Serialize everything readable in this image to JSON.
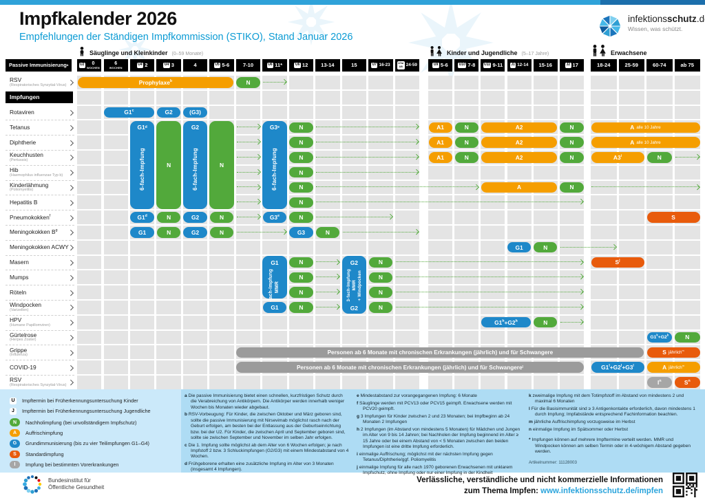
{
  "header": {
    "title": "Impfkalender 2026",
    "subtitle": "Empfehlungen der Ständigen Impfkommission (STIKO), Stand Januar 2026",
    "brand": {
      "pre": "infektions",
      "bold": "schutz",
      "post": ".de",
      "tagline": "Wissen, was schützt."
    }
  },
  "groups": [
    {
      "label": "Säuglinge und Kleinkinder",
      "sub": "(0–59 Monate)"
    },
    {
      "label": "Kinder und Jugendliche",
      "sub": "(5–17 Jahre)"
    },
    {
      "label": "Erwachsene",
      "sub": ""
    }
  ],
  "corner_label": "Passive Immunisierung^a",
  "columns": [
    [
      {
        "badge": "U2",
        "line1": "0",
        "line2": "WOCHEN"
      },
      {
        "line1": "6",
        "line2": "WOCHEN"
      },
      {
        "badge": "U4",
        "line1": "2"
      },
      {
        "badge": "U4",
        "line1": "3"
      },
      {
        "line1": "4"
      },
      {
        "badge": "U5",
        "line1": "5-6"
      },
      {
        "line1": "7-10"
      },
      {
        "badge": "U6",
        "line1": "11*"
      },
      {
        "badge": "U6",
        "line1": "12"
      },
      {
        "line1": "13-14"
      },
      {
        "line1": "15"
      },
      {
        "badge": "U7",
        "line1": "16-23"
      },
      {
        "badge": "U7a/U8",
        "line1": "24-59"
      }
    ],
    [
      {
        "badge": "U9",
        "line1": "5-6"
      },
      {
        "badge": "U10",
        "line1": "7-8"
      },
      {
        "badge": "U11",
        "line1": "9-11"
      },
      {
        "badge": "J1",
        "line1": "12-14"
      },
      {
        "line1": "15-16"
      },
      {
        "badge": "J2",
        "line1": "17"
      }
    ],
    [
      {
        "line1": "18-24"
      },
      {
        "line1": "25-59"
      },
      {
        "line1": "60-74"
      },
      {
        "line1": "ab 75"
      }
    ]
  ],
  "rows": [
    {
      "label": "RSV",
      "sub": "(Respiratorisches Synzytial-Virus)"
    },
    {
      "section": "Impfungen"
    },
    {
      "label": "Rotaviren"
    },
    {
      "label": "Tetanus"
    },
    {
      "label": "Diphtherie"
    },
    {
      "label": "Keuchhusten",
      "sub": "(Pertussis)"
    },
    {
      "label": "Hib",
      "sub": "(Haemophilus influenzae Typ b)"
    },
    {
      "label": "Kinderlähmung",
      "sub": "(Poliomyelitis)"
    },
    {
      "label": "Hepatitis B"
    },
    {
      "label": "Pneumokokken^f"
    },
    {
      "label": "Meningokokken B^g"
    },
    {
      "label": "Meningokokken ACWY"
    },
    {
      "label": "Masern"
    },
    {
      "label": "Mumps"
    },
    {
      "label": "Röteln"
    },
    {
      "label": "Windpocken",
      "sub": "(Varizellen)"
    },
    {
      "label": "HPV",
      "sub": "(Humane Papillomviren)"
    },
    {
      "label": "Gürtelrose",
      "sub": "(Herpes Zoster)"
    },
    {
      "label": "Grippe",
      "sub": "(Influenza)"
    },
    {
      "label": "COVID-19"
    },
    {
      "label": "RSV",
      "sub": "(Respiratorisches Synzytial-Virus)"
    }
  ],
  "blocks": [
    {
      "r0": 3,
      "r1": 8,
      "s": 0,
      "c": 2,
      "color": "blue",
      "top": "G1^d",
      "mid": [
        "6-fach-Impfung"
      ]
    },
    {
      "r0": 3,
      "r1": 8,
      "s": 0,
      "c": 3,
      "color": "green",
      "center": "N"
    },
    {
      "r0": 3,
      "r1": 8,
      "s": 0,
      "c": 4,
      "color": "blue",
      "top": "G2",
      "mid": [
        "6-fach-Impfung"
      ]
    },
    {
      "r0": 3,
      "r1": 8,
      "s": 0,
      "c": 5,
      "color": "green",
      "center": "N"
    },
    {
      "r0": 3,
      "r1": 8,
      "s": 0,
      "c": 7,
      "color": "blue",
      "top": "G3^e",
      "mid": [
        "6-fach-Impfung"
      ]
    },
    {
      "r0": 12,
      "r1": 14,
      "s": 0,
      "c": 7,
      "color": "blue",
      "top": "G1",
      "mid": [
        "3-fach-Impfung",
        "MMR"
      ]
    },
    {
      "r0": 12,
      "r1": 15,
      "s": 0,
      "c": 10,
      "color": "blue",
      "top": "G2",
      "mid": [
        "3-fach-Impfung",
        "MMR",
        "+ Windpocken"
      ],
      "bottom": "G2"
    }
  ],
  "pills": [
    {
      "r": 0,
      "s": 0,
      "c0": 0,
      "c1": 5,
      "color": "orange",
      "label": "Prophylaxe^b"
    },
    {
      "r": 0,
      "s": 0,
      "c0": 6,
      "c1": 6,
      "color": "green",
      "label": "N"
    },
    {
      "r": 2,
      "s": 0,
      "c0": 1,
      "c1": 2,
      "color": "blue",
      "label": "G1^c"
    },
    {
      "r": 2,
      "s": 0,
      "c0": 3,
      "c1": 3,
      "color": "blue",
      "label": "G2"
    },
    {
      "r": 2,
      "s": 0,
      "c0": 4,
      "c1": 4,
      "color": "blue",
      "label": "(G3)"
    },
    {
      "r": 3,
      "s": 0,
      "c0": 8,
      "c1": 8,
      "color": "green",
      "label": "N"
    },
    {
      "r": 4,
      "s": 0,
      "c0": 8,
      "c1": 8,
      "color": "green",
      "label": "N"
    },
    {
      "r": 5,
      "s": 0,
      "c0": 8,
      "c1": 8,
      "color": "green",
      "label": "N"
    },
    {
      "r": 6,
      "s": 0,
      "c0": 8,
      "c1": 8,
      "color": "green",
      "label": "N"
    },
    {
      "r": 7,
      "s": 0,
      "c0": 8,
      "c1": 8,
      "color": "green",
      "label": "N"
    },
    {
      "r": 8,
      "s": 0,
      "c0": 8,
      "c1": 8,
      "color": "green",
      "label": "N"
    },
    {
      "r": 3,
      "s": 1,
      "c0": 0,
      "c1": 0,
      "color": "orange",
      "label": "A1"
    },
    {
      "r": 3,
      "s": 1,
      "c0": 1,
      "c1": 1,
      "color": "green",
      "label": "N"
    },
    {
      "r": 3,
      "s": 1,
      "c0": 2,
      "c1": 4,
      "color": "orange",
      "label": "A2"
    },
    {
      "r": 3,
      "s": 1,
      "c0": 5,
      "c1": 5,
      "color": "green",
      "label": "N"
    },
    {
      "r": 3,
      "s": 2,
      "c0": 0,
      "c1": 3,
      "color": "orange",
      "label": "A",
      "small": "alle 10 Jahre"
    },
    {
      "r": 4,
      "s": 1,
      "c0": 0,
      "c1": 0,
      "color": "orange",
      "label": "A1"
    },
    {
      "r": 4,
      "s": 1,
      "c0": 1,
      "c1": 1,
      "color": "green",
      "label": "N"
    },
    {
      "r": 4,
      "s": 1,
      "c0": 2,
      "c1": 4,
      "color": "orange",
      "label": "A2"
    },
    {
      "r": 4,
      "s": 1,
      "c0": 5,
      "c1": 5,
      "color": "green",
      "label": "N"
    },
    {
      "r": 4,
      "s": 2,
      "c0": 0,
      "c1": 3,
      "color": "orange",
      "label": "A",
      "small": "alle 10 Jahre"
    },
    {
      "r": 5,
      "s": 1,
      "c0": 0,
      "c1": 0,
      "color": "orange",
      "label": "A1"
    },
    {
      "r": 5,
      "s": 1,
      "c0": 1,
      "c1": 1,
      "color": "green",
      "label": "N"
    },
    {
      "r": 5,
      "s": 1,
      "c0": 2,
      "c1": 4,
      "color": "orange",
      "label": "A2"
    },
    {
      "r": 5,
      "s": 1,
      "c0": 5,
      "c1": 5,
      "color": "green",
      "label": "N"
    },
    {
      "r": 5,
      "s": 2,
      "c0": 0,
      "c1": 1,
      "color": "orange",
      "label": "A3^i"
    },
    {
      "r": 5,
      "s": 2,
      "c0": 2,
      "c1": 2,
      "color": "green",
      "label": "N"
    },
    {
      "r": 7,
      "s": 1,
      "c0": 2,
      "c1": 4,
      "color": "orange",
      "label": "A"
    },
    {
      "r": 7,
      "s": 1,
      "c0": 5,
      "c1": 5,
      "color": "green",
      "label": "N"
    },
    {
      "r": 9,
      "s": 0,
      "c0": 2,
      "c1": 2,
      "color": "blue",
      "label": "G1^d"
    },
    {
      "r": 9,
      "s": 0,
      "c0": 3,
      "c1": 3,
      "color": "green",
      "label": "N"
    },
    {
      "r": 9,
      "s": 0,
      "c0": 4,
      "c1": 4,
      "color": "blue",
      "label": "G2"
    },
    {
      "r": 9,
      "s": 0,
      "c0": 5,
      "c1": 5,
      "color": "green",
      "label": "N"
    },
    {
      "r": 9,
      "s": 0,
      "c0": 7,
      "c1": 7,
      "color": "blue",
      "label": "G3^e"
    },
    {
      "r": 9,
      "s": 0,
      "c0": 8,
      "c1": 8,
      "color": "green",
      "label": "N"
    },
    {
      "r": 9,
      "s": 2,
      "c0": 2,
      "c1": 3,
      "color": "dorange",
      "label": "S"
    },
    {
      "r": 10,
      "s": 0,
      "c0": 2,
      "c1": 2,
      "color": "blue",
      "label": "G1"
    },
    {
      "r": 10,
      "s": 0,
      "c0": 3,
      "c1": 3,
      "color": "green",
      "label": "N"
    },
    {
      "r": 10,
      "s": 0,
      "c0": 4,
      "c1": 4,
      "color": "blue",
      "label": "G2"
    },
    {
      "r": 10,
      "s": 0,
      "c0": 5,
      "c1": 5,
      "color": "green",
      "label": "N"
    },
    {
      "r": 10,
      "s": 0,
      "c0": 8,
      "c1": 8,
      "color": "blue",
      "label": "G3"
    },
    {
      "r": 10,
      "s": 0,
      "c0": 9,
      "c1": 9,
      "color": "green",
      "label": "N"
    },
    {
      "r": 11,
      "s": 1,
      "c0": 3,
      "c1": 3,
      "color": "blue",
      "label": "G1"
    },
    {
      "r": 11,
      "s": 1,
      "c0": 4,
      "c1": 4,
      "color": "green",
      "label": "N"
    },
    {
      "r": 12,
      "s": 0,
      "c0": 8,
      "c1": 8,
      "color": "green",
      "label": "N"
    },
    {
      "r": 12,
      "s": 0,
      "c0": 11,
      "c1": 11,
      "color": "green",
      "label": "N"
    },
    {
      "r": 12,
      "s": 2,
      "c0": 0,
      "c1": 1,
      "color": "dorange",
      "label": "S^j"
    },
    {
      "r": 13,
      "s": 0,
      "c0": 8,
      "c1": 8,
      "color": "green",
      "label": "N"
    },
    {
      "r": 13,
      "s": 0,
      "c0": 11,
      "c1": 11,
      "color": "green",
      "label": "N"
    },
    {
      "r": 14,
      "s": 0,
      "c0": 8,
      "c1": 8,
      "color": "green",
      "label": "N"
    },
    {
      "r": 14,
      "s": 0,
      "c0": 11,
      "c1": 11,
      "color": "green",
      "label": "N"
    },
    {
      "r": 15,
      "s": 0,
      "c0": 7,
      "c1": 7,
      "color": "blue",
      "label": "G1"
    },
    {
      "r": 15,
      "s": 0,
      "c0": 8,
      "c1": 8,
      "color": "green",
      "label": "N"
    },
    {
      "r": 15,
      "s": 0,
      "c0": 11,
      "c1": 11,
      "color": "green",
      "label": "N"
    },
    {
      "r": 16,
      "s": 1,
      "c0": 2,
      "c1": 3,
      "color": "blue",
      "label": "G1^h+G2^h"
    },
    {
      "r": 16,
      "s": 1,
      "c0": 4,
      "c1": 4,
      "color": "green",
      "label": "N"
    },
    {
      "r": 17,
      "s": 2,
      "c0": 2,
      "c1": 2,
      "color": "blue",
      "label": "G1^k+G2^k"
    },
    {
      "r": 17,
      "s": 2,
      "c0": 3,
      "c1": 3,
      "color": "green",
      "label": "N"
    },
    {
      "r": 18,
      "s": 2,
      "c0": 2,
      "c1": 3,
      "color": "dorange",
      "label": "S",
      "small": "jährlich^m"
    },
    {
      "r": 19,
      "s": 2,
      "c0": 0,
      "c1": 1,
      "color": "blue",
      "label": "G1^l+G2^l+G3^l"
    },
    {
      "r": 19,
      "s": 2,
      "c0": 2,
      "c1": 3,
      "color": "orange",
      "label": "A",
      "small": "jährlich^m"
    },
    {
      "r": 20,
      "s": 2,
      "c0": 2,
      "c1": 2,
      "color": "graypill",
      "label": "I^n"
    },
    {
      "r": 20,
      "s": 2,
      "c0": 3,
      "c1": 3,
      "color": "dorange",
      "label": "S^n"
    }
  ],
  "bars": [
    {
      "r": 18,
      "s0": 0,
      "c0": 6,
      "s1": 2,
      "c1": 1,
      "label": "Personen ab 6 Monate mit chronischen Erkrankungen (jährlich) und für Schwangere"
    },
    {
      "r": 19,
      "s0": 0,
      "c0": 6,
      "s1": 1,
      "c1": 5,
      "label": "Personen ab 6 Monate mit chronischen Erkrankungen (jährlich) und für Schwangere^l"
    }
  ],
  "arrows": [
    {
      "r": 0,
      "s0": 0,
      "c0": 7,
      "s1": 0,
      "c1": 7
    },
    {
      "r": 3,
      "s0": 0,
      "c0": 6,
      "s1": 0,
      "c1": 6
    },
    {
      "r": 4,
      "s0": 0,
      "c0": 6,
      "s1": 0,
      "c1": 6
    },
    {
      "r": 5,
      "s0": 0,
      "c0": 6,
      "s1": 0,
      "c1": 6
    },
    {
      "r": 6,
      "s0": 0,
      "c0": 6,
      "s1": 0,
      "c1": 6
    },
    {
      "r": 7,
      "s0": 0,
      "c0": 6,
      "s1": 0,
      "c1": 6
    },
    {
      "r": 8,
      "s0": 0,
      "c0": 6,
      "s1": 0,
      "c1": 6
    },
    {
      "r": 3,
      "s0": 0,
      "c0": 9,
      "s1": 0,
      "c1": 12
    },
    {
      "r": 4,
      "s0": 0,
      "c0": 9,
      "s1": 0,
      "c1": 12
    },
    {
      "r": 5,
      "s0": 0,
      "c0": 9,
      "s1": 0,
      "c1": 12
    },
    {
      "r": 6,
      "s0": 0,
      "c0": 9,
      "s1": 0,
      "c1": 12
    },
    {
      "r": 7,
      "s0": 0,
      "c0": 9,
      "s1": 1,
      "c1": 1
    },
    {
      "r": 8,
      "s0": 0,
      "c0": 9,
      "s1": 1,
      "c1": 5
    },
    {
      "r": 5,
      "s0": 2,
      "c0": 3,
      "s1": 2,
      "c1": 3
    },
    {
      "r": 7,
      "s0": 2,
      "c0": 0,
      "s1": 2,
      "c1": 3
    },
    {
      "r": 9,
      "s0": 0,
      "c0": 6,
      "s1": 0,
      "c1": 6
    },
    {
      "r": 9,
      "s0": 0,
      "c0": 9,
      "s1": 0,
      "c1": 11
    },
    {
      "r": 10,
      "s0": 0,
      "c0": 6,
      "s1": 0,
      "c1": 7
    },
    {
      "r": 10,
      "s0": 0,
      "c0": 10,
      "s1": 0,
      "c1": 12
    },
    {
      "r": 11,
      "s0": 1,
      "c0": 5,
      "s1": 2,
      "c1": 0
    },
    {
      "r": 12,
      "s0": 0,
      "c0": 9,
      "s1": 0,
      "c1": 9
    },
    {
      "r": 12,
      "s0": 0,
      "c0": 12,
      "s1": 1,
      "c1": 5
    },
    {
      "r": 13,
      "s0": 0,
      "c0": 9,
      "s1": 0,
      "c1": 9
    },
    {
      "r": 13,
      "s0": 0,
      "c0": 12,
      "s1": 1,
      "c1": 5
    },
    {
      "r": 14,
      "s0": 0,
      "c0": 9,
      "s1": 0,
      "c1": 9
    },
    {
      "r": 14,
      "s0": 0,
      "c0": 12,
      "s1": 1,
      "c1": 5
    },
    {
      "r": 15,
      "s0": 0,
      "c0": 9,
      "s1": 0,
      "c1": 9
    },
    {
      "r": 15,
      "s0": 0,
      "c0": 12,
      "s1": 1,
      "c1": 5
    },
    {
      "r": 16,
      "s0": 1,
      "c0": 5,
      "s1": 1,
      "c1": 5
    }
  ],
  "legend": [
    {
      "badge": "U",
      "style": "white",
      "text": "Impftermin bei Früherkennungsuntersuchung Kinder"
    },
    {
      "badge": "J",
      "style": "white",
      "text": "Impftermin bei Früherkennungsuntersuchung Jugendliche"
    },
    {
      "badge": "N",
      "style": "green",
      "text": "Nachholimpfung (bei unvollständigem Impfschutz)"
    },
    {
      "badge": "A",
      "style": "orange",
      "text": "Auffrischimpfung"
    },
    {
      "badge": "G",
      "style": "blue",
      "text": "Grundimmunisierung (bis zu vier Teilimpfungen G1–G4)"
    },
    {
      "badge": "S",
      "style": "dorange",
      "text": "Standardimpfung"
    },
    {
      "badge": "I",
      "style": "gray",
      "text": "Impfung bei bestimmten Vorerkrankungen"
    }
  ],
  "footnotes": {
    "cols": [
      [
        {
          "k": "a",
          "t": "Die passive Immunisierung bietet einen schnellen, kurzfristigen Schutz durch die Verabreichung von Antikörpern. Die Antikörper werden innerhalb weniger Wochen bis Monaten wieder abgebaut."
        },
        {
          "k": "b",
          "t": "RSV-Vorbeugung: Für Kinder, die zwischen Oktober und März geboren sind, sollte die passive Immunisierung mit Nirsevimab möglichst rasch nach der Geburt erfolgen, am besten bei der Entlassung aus der Geburtseinrichtung bzw. bei der U2. Für Kinder, die zwischen April und September geboren sind, sollte sie zwischen September und November im selben Jahr erfolgen."
        },
        {
          "k": "c",
          "t": "Die 1. Impfung sollte möglichst ab dem Alter von 6 Wochen erfolgen; je nach Impfstoff 2 bzw. 3 Schluckimpfungen (G2/G3) mit einem Mindestabstand von 4 Wochen."
        },
        {
          "k": "d",
          "t": "Frühgeborene erhalten eine zusätzliche Impfung im Alter von 3 Monaten (insgesamt 4 Impfungen)."
        }
      ],
      [
        {
          "k": "e",
          "t": "Mindestabstand zur vorangegangenen Impfung: 6 Monate"
        },
        {
          "k": "f",
          "t": "Säuglinge werden mit PCV13 oder PCV15 geimpft. Erwachsene werden mit PCV20 geimpft."
        },
        {
          "k": "g",
          "t": "3 Impfungen für Kinder zwischen 2 und 23 Monaten; bei Impfbeginn ab 24 Monaten 2 Impfungen"
        },
        {
          "k": "h",
          "t": "2 Impfungen (im Abstand von mindestens 5 Monaten) für Mädchen und Jungen im Alter von 9 bis 14 Jahren; bei Nachholen der Impfung beginnend im Alter ≥ 15 Jahre oder bei einem Abstand von < 5 Monaten zwischen den beiden Impfungen ist eine dritte Impfung erforderlich."
        },
        {
          "k": "i",
          "t": "einmalige Auffrischung; möglichst mit der nächsten Impfung gegen Tetanus/Diphtherie/ggf. Poliomyelitis"
        },
        {
          "k": "j",
          "t": "einmalige Impfung für alle nach 1970 geborenen Erwachsenen mit unklarem Impfschutz, ohne Impfung oder nur einer Impfung in der Kindheit"
        }
      ],
      [
        {
          "k": "k",
          "t": "zweimalige Impfung mit dem Totimpfstoff im Abstand von mindestens 2 und maximal 6 Monaten"
        },
        {
          "k": "l",
          "t": "Für die Basisimmunität sind ≥ 3 Antigenkontakte erforderlich, davon mindestens 1 durch Impfung; Impfabstände entsprechend Fachinformation beachten."
        },
        {
          "k": "m",
          "t": "jährliche Auffrischimpfung vorzugsweise im Herbst"
        },
        {
          "k": "n",
          "t": "einmalige Impfung im Spätsommer oder Herbst"
        },
        {
          "k": "*",
          "t": "Impfungen können auf mehrere Impftermine verteilt werden. MMR und Windpocken können am selben Termin oder in 4-wöchigem Abstand gegeben werden."
        }
      ]
    ],
    "artikelnummer": "Artikelnummer: 11128003"
  },
  "footer": {
    "org1": "Bundesinstitut für",
    "org2": "Öffentliche Gesundheit",
    "line1": "Verlässliche, verständliche und nicht kommerzielle Informationen",
    "line2_prefix": "zum Thema Impfen: ",
    "line2_link": "www.infektionsschutz.de/impfen"
  },
  "colors": {
    "grundimmunisierung_blue": "#1E88C9",
    "nachhol_green": "#52A93B",
    "auffrisch_orange": "#F59E00",
    "standard_dark_orange": "#E85B0C",
    "vorerkrankung_gray": "#A6A6A6",
    "cell_gray": "#E4E4E4",
    "panel_blue": "#AEDCF4",
    "accent_blue": "#2FA2D9",
    "link_blue": "#2AA4DC"
  }
}
